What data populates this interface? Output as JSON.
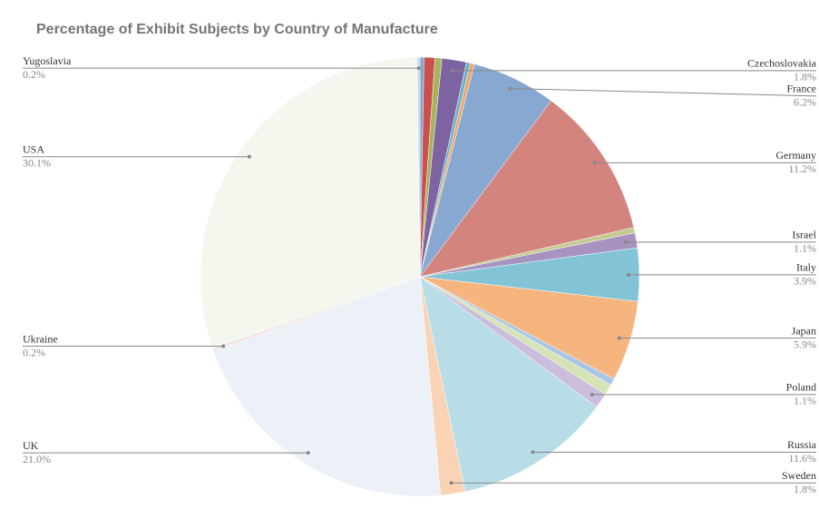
{
  "chart_data": {
    "type": "pie",
    "title": "Percentage of Exhibit Subjects by Country of Manufacture",
    "categories": [
      null,
      null,
      null,
      "Czechoslovakia",
      null,
      null,
      "France",
      "Germany",
      null,
      "Israel",
      "Italy",
      "Japan",
      null,
      null,
      "Poland",
      "Russia",
      "Sweden",
      "UK",
      "Ukraine",
      "USA",
      "Yugoslavia"
    ],
    "values": [
      0.3,
      0.8,
      0.5,
      1.8,
      0.3,
      0.3,
      6.2,
      11.2,
      0.4,
      1.1,
      3.9,
      5.9,
      0.5,
      0.8,
      1.1,
      11.6,
      1.8,
      21.0,
      0.2,
      30.1,
      0.2
    ],
    "value_labels": [
      null,
      null,
      null,
      "1.8%",
      null,
      null,
      "6.2%",
      "11.2%",
      null,
      "1.1%",
      "3.9%",
      "5.9%",
      null,
      null,
      "1.1%",
      "11.6%",
      "1.8%",
      "21.0%",
      "0.2%",
      "30.1%",
      "0.2%"
    ],
    "colors": [
      "#7fa6cf",
      "#c9504f",
      "#a4b45a",
      "#7d63a1",
      "#6cb4c9",
      "#f0a66a",
      "#87a8d0",
      "#d4847f",
      "#c3cc8f",
      "#a893c0",
      "#82c4d6",
      "#f6b57f",
      "#aac5e6",
      "#d5e3b7",
      "#cbbedc",
      "#b9dde7",
      "#f9d3b4",
      "#ecf0f7",
      "#f5dcdc",
      "#f4f7ee",
      "#c5d5ea"
    ]
  }
}
